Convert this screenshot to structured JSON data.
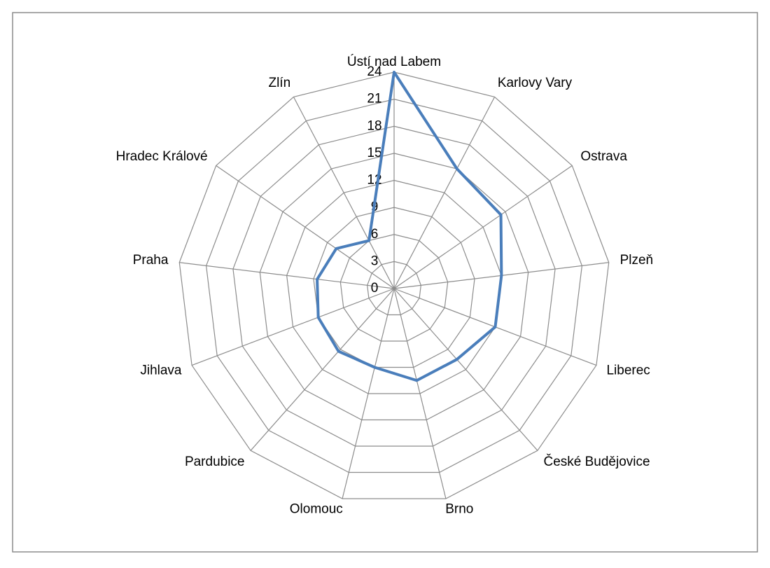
{
  "chart_data": {
    "type": "radar",
    "categories": [
      "Ústí nad Labem",
      "Karlovy Vary",
      "Ostrava",
      "Plzeň",
      "Liberec",
      "České Budějovice",
      "Brno",
      "Olomouc",
      "Pardubice",
      "Jihlava",
      "Praha",
      "Hradec Králové",
      "Zlín"
    ],
    "values": [
      24,
      15,
      14.4,
      12,
      12,
      10.5,
      10.5,
      9,
      9.3,
      9,
      8.6,
      7.8,
      6
    ],
    "color": "#4a7ebb",
    "ylim": [
      0,
      24
    ],
    "yticks": [
      0,
      3,
      6,
      9,
      12,
      15,
      18,
      21,
      24
    ],
    "grid": true
  }
}
